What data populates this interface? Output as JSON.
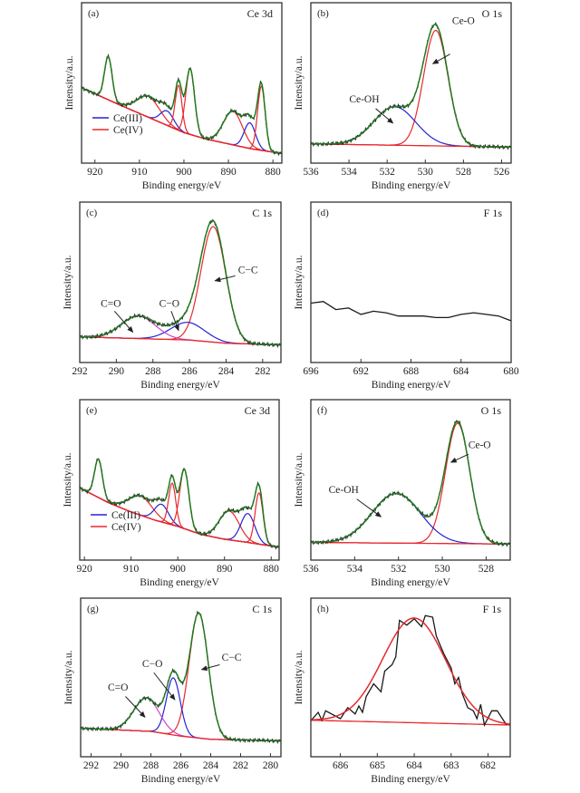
{
  "colors": {
    "envelope": "#1e7d1e",
    "raw": "#1a1a1a",
    "ce_iv": "#e8282c",
    "ce_iii": "#2323d2",
    "c_c": "#e8282c",
    "c_o": "#2323d2",
    "c_eq_o": "#cc44cc",
    "background": "#e8282c",
    "ce_o": "#e8282c",
    "ce_oh": "#2323d2",
    "f": "#e8282c"
  },
  "chart_data": [
    {
      "type": "line",
      "panel_label": "(a)",
      "element": "Ce 3d",
      "xlabel": "Binding energy/eV",
      "ylabel": "Intensity/a.u.",
      "xlim": [
        923,
        878
      ],
      "ylim": [
        0,
        1
      ],
      "x_reversed": true,
      "xticks": [
        920,
        910,
        900,
        890,
        880
      ],
      "yticks": [],
      "grid": false,
      "legend": {
        "placement": "lower-left",
        "entries": [
          {
            "label": "Ce(III)",
            "color": "#2323d2"
          },
          {
            "label": "Ce(IV)",
            "color": "#e8282c"
          }
        ]
      },
      "background": [
        [
          923,
          0.47
        ],
        [
          915,
          0.37
        ],
        [
          910,
          0.31
        ],
        [
          905,
          0.25
        ],
        [
          900,
          0.19
        ],
        [
          895,
          0.15
        ],
        [
          890,
          0.12
        ],
        [
          885,
          0.09
        ],
        [
          878,
          0.06
        ]
      ],
      "components": [
        {
          "species": "Ce(IV)",
          "center": 917.0,
          "fwhm": 2.0,
          "height": 0.27
        },
        {
          "species": "Ce(IV)",
          "center": 908.0,
          "fwhm": 6.0,
          "height": 0.13
        },
        {
          "species": "Ce(III)",
          "center": 903.8,
          "fwhm": 3.5,
          "height": 0.09
        },
        {
          "species": "Ce(IV)",
          "center": 901.2,
          "fwhm": 1.8,
          "height": 0.28
        },
        {
          "species": "Ce(IV)",
          "center": 898.6,
          "fwhm": 2.3,
          "height": 0.41
        },
        {
          "species": "Ce(IV)",
          "center": 889.0,
          "fwhm": 5.0,
          "height": 0.21
        },
        {
          "species": "Ce(III)",
          "center": 885.2,
          "fwhm": 3.0,
          "height": 0.16
        },
        {
          "species": "Ce(IV)",
          "center": 882.6,
          "fwhm": 2.0,
          "height": 0.4
        }
      ],
      "annotations": []
    },
    {
      "type": "line",
      "panel_label": "(b)",
      "element": "O 1s",
      "xlabel": "Binding energy/eV",
      "ylabel": "Intensity/a.u.",
      "xlim": [
        536,
        525.5
      ],
      "ylim": [
        0,
        1
      ],
      "x_reversed": true,
      "xticks": [
        536,
        534,
        532,
        530,
        528,
        526
      ],
      "yticks": [],
      "grid": false,
      "background": [
        [
          536,
          0.12
        ],
        [
          525.5,
          0.1
        ]
      ],
      "components": [
        {
          "species": "Ce-O",
          "center": 529.45,
          "fwhm": 1.5,
          "height": 0.72
        },
        {
          "species": "Ce-OH",
          "center": 531.6,
          "fwhm": 2.6,
          "height": 0.24
        }
      ],
      "annotations": [
        {
          "text": "Ce-O",
          "x": 528.0,
          "y": 0.89,
          "arrow_from": [
            528.7,
            0.68
          ],
          "arrow_to": [
            529.6,
            0.62
          ]
        },
        {
          "text": "Ce-OH",
          "x": 533.2,
          "y": 0.4,
          "arrow_from": [
            532.6,
            0.34
          ],
          "arrow_to": [
            531.7,
            0.25
          ]
        }
      ]
    },
    {
      "type": "line",
      "panel_label": "(c)",
      "element": "C 1s",
      "xlabel": "Binding energy/eV",
      "ylabel": "Intensity/a.u.",
      "xlim": [
        292,
        281
      ],
      "ylim": [
        0,
        1
      ],
      "x_reversed": true,
      "xticks": [
        292,
        290,
        288,
        286,
        284,
        282
      ],
      "yticks": [],
      "grid": false,
      "background": [
        [
          292,
          0.16
        ],
        [
          286,
          0.14
        ],
        [
          284,
          0.12
        ],
        [
          281,
          0.11
        ]
      ],
      "components": [
        {
          "species": "C-C",
          "center": 284.7,
          "fwhm": 1.6,
          "height": 0.72
        },
        {
          "species": "C-O",
          "center": 286.1,
          "fwhm": 2.2,
          "height": 0.11
        },
        {
          "species": "C=O",
          "center": 288.8,
          "fwhm": 2.2,
          "height": 0.14
        }
      ],
      "annotations": [
        {
          "text": "C−C",
          "x": 282.8,
          "y": 0.58,
          "arrow_from": [
            283.5,
            0.54
          ],
          "arrow_to": [
            284.6,
            0.51
          ]
        },
        {
          "text": "C=O",
          "x": 290.3,
          "y": 0.37,
          "arrow_from": [
            290.1,
            0.32
          ],
          "arrow_to": [
            289.1,
            0.19
          ]
        },
        {
          "text": "C−O",
          "x": 287.1,
          "y": 0.37,
          "arrow_from": [
            287.0,
            0.32
          ],
          "arrow_to": [
            286.6,
            0.2
          ]
        }
      ]
    },
    {
      "type": "line",
      "panel_label": "(d)",
      "element": "F 1s",
      "xlabel": "Binding energy/eV",
      "ylabel": "Intensity/a.u.",
      "xlim": [
        696,
        680
      ],
      "ylim": [
        0,
        1
      ],
      "x_reversed": true,
      "xticks": [
        696,
        692,
        688,
        684,
        680
      ],
      "yticks": [],
      "grid": false,
      "raw": [
        [
          696,
          0.37
        ],
        [
          695,
          0.38
        ],
        [
          694,
          0.33
        ],
        [
          693,
          0.34
        ],
        [
          692,
          0.3
        ],
        [
          691,
          0.32
        ],
        [
          690,
          0.31
        ],
        [
          689,
          0.29
        ],
        [
          688,
          0.29
        ],
        [
          687,
          0.29
        ],
        [
          686,
          0.28
        ],
        [
          685,
          0.28
        ],
        [
          684,
          0.3
        ],
        [
          683,
          0.31
        ],
        [
          682,
          0.3
        ],
        [
          681,
          0.29
        ],
        [
          680,
          0.26
        ]
      ],
      "components": [],
      "annotations": []
    },
    {
      "type": "line",
      "panel_label": "(e)",
      "element": "Ce 3d",
      "xlabel": "Binding energy/eV",
      "ylabel": "Intensity/a.u.",
      "xlim": [
        921,
        878.3
      ],
      "ylim": [
        0,
        1
      ],
      "x_reversed": true,
      "xticks": [
        920,
        910,
        900,
        890,
        880
      ],
      "yticks": [],
      "grid": false,
      "legend": {
        "placement": "lower-left",
        "entries": [
          {
            "label": "Ce(III)",
            "color": "#2323d2"
          },
          {
            "label": "Ce(IV)",
            "color": "#e8282c"
          }
        ]
      },
      "background": [
        [
          921,
          0.45
        ],
        [
          915,
          0.36
        ],
        [
          910,
          0.3
        ],
        [
          905,
          0.25
        ],
        [
          900,
          0.21
        ],
        [
          895,
          0.16
        ],
        [
          890,
          0.13
        ],
        [
          885,
          0.11
        ],
        [
          878.3,
          0.08
        ]
      ],
      "components": [
        {
          "species": "Ce(IV)",
          "center": 917.0,
          "fwhm": 2.0,
          "height": 0.24
        },
        {
          "species": "Ce(IV)",
          "center": 908.0,
          "fwhm": 6.0,
          "height": 0.12
        },
        {
          "species": "Ce(III)",
          "center": 903.5,
          "fwhm": 3.5,
          "height": 0.11
        },
        {
          "species": "Ce(IV)",
          "center": 901.2,
          "fwhm": 1.8,
          "height": 0.26
        },
        {
          "species": "Ce(IV)",
          "center": 898.6,
          "fwhm": 2.3,
          "height": 0.37
        },
        {
          "species": "Ce(IV)",
          "center": 889.0,
          "fwhm": 5.0,
          "height": 0.18
        },
        {
          "species": "Ce(III)",
          "center": 885.0,
          "fwhm": 3.5,
          "height": 0.18
        },
        {
          "species": "Ce(IV)",
          "center": 882.6,
          "fwhm": 2.0,
          "height": 0.32
        }
      ],
      "annotations": []
    },
    {
      "type": "line",
      "panel_label": "(f)",
      "element": "O 1s",
      "xlabel": "Binding energy/eV",
      "ylabel": "Intensity/a.u.",
      "xlim": [
        536,
        526.9
      ],
      "ylim": [
        0,
        1
      ],
      "x_reversed": true,
      "xticks": [
        536,
        534,
        532,
        530,
        528
      ],
      "yticks": [],
      "grid": false,
      "background": [
        [
          536,
          0.11
        ],
        [
          526.9,
          0.1
        ]
      ],
      "components": [
        {
          "species": "Ce-O",
          "center": 529.3,
          "fwhm": 1.3,
          "height": 0.75
        },
        {
          "species": "Ce-OH",
          "center": 532.1,
          "fwhm": 2.6,
          "height": 0.31
        }
      ],
      "annotations": [
        {
          "text": "Ce-O",
          "x": 528.3,
          "y": 0.72,
          "arrow_from": [
            528.8,
            0.66
          ],
          "arrow_to": [
            529.6,
            0.61
          ]
        },
        {
          "text": "Ce-OH",
          "x": 534.5,
          "y": 0.44,
          "arrow_from": [
            533.9,
            0.38
          ],
          "arrow_to": [
            532.8,
            0.27
          ]
        }
      ]
    },
    {
      "type": "line",
      "panel_label": "(g)",
      "element": "C 1s",
      "xlabel": "Binding energy/eV",
      "ylabel": "Intensity/a.u.",
      "xlim": [
        292.7,
        279.3
      ],
      "ylim": [
        0,
        1
      ],
      "x_reversed": true,
      "xticks": [
        292,
        290,
        288,
        286,
        284,
        282,
        280
      ],
      "yticks": [],
      "grid": false,
      "background": [
        [
          292.7,
          0.18
        ],
        [
          288,
          0.16
        ],
        [
          286,
          0.13
        ],
        [
          284,
          0.11
        ],
        [
          279.3,
          0.1
        ]
      ],
      "components": [
        {
          "species": "C-C",
          "center": 284.8,
          "fwhm": 1.5,
          "height": 0.79
        },
        {
          "species": "C-O",
          "center": 286.5,
          "fwhm": 1.1,
          "height": 0.36
        },
        {
          "species": "C=O",
          "center": 288.3,
          "fwhm": 2.0,
          "height": 0.21
        }
      ],
      "annotations": [
        {
          "text": "C−C",
          "x": 282.6,
          "y": 0.63,
          "arrow_from": [
            283.4,
            0.58
          ],
          "arrow_to": [
            284.6,
            0.55
          ]
        },
        {
          "text": "C−O",
          "x": 287.9,
          "y": 0.59,
          "arrow_from": [
            287.8,
            0.53
          ],
          "arrow_to": [
            286.4,
            0.36
          ]
        },
        {
          "text": "C=O",
          "x": 290.2,
          "y": 0.44,
          "arrow_from": [
            289.7,
            0.38
          ],
          "arrow_to": [
            288.4,
            0.25
          ]
        }
      ]
    },
    {
      "type": "line",
      "panel_label": "(h)",
      "element": "F 1s",
      "xlabel": "Binding energy/eV",
      "ylabel": "Intensity/a.u.",
      "xlim": [
        686.8,
        681.4
      ],
      "ylim": [
        0,
        1
      ],
      "x_reversed": true,
      "xticks": [
        686,
        685,
        684,
        683,
        682
      ],
      "yticks": [],
      "grid": false,
      "background": [
        [
          686.8,
          0.23
        ],
        [
          681.4,
          0.2
        ]
      ],
      "components": [
        {
          "species": "F",
          "center": 684.0,
          "fwhm": 2.0,
          "height": 0.66
        }
      ],
      "raw": [
        [
          686.79,
          0.23
        ],
        [
          686.6,
          0.28
        ],
        [
          686.5,
          0.23
        ],
        [
          686.4,
          0.29
        ],
        [
          686.0,
          0.24
        ],
        [
          685.8,
          0.31
        ],
        [
          685.6,
          0.27
        ],
        [
          685.5,
          0.32
        ],
        [
          685.4,
          0.28
        ],
        [
          685.3,
          0.38
        ],
        [
          685.1,
          0.46
        ],
        [
          684.9,
          0.41
        ],
        [
          684.8,
          0.54
        ],
        [
          684.6,
          0.58
        ],
        [
          684.5,
          0.63
        ],
        [
          684.4,
          0.86
        ],
        [
          684.2,
          0.83
        ],
        [
          684.0,
          0.87
        ],
        [
          683.8,
          0.82
        ],
        [
          683.7,
          0.89
        ],
        [
          683.5,
          0.88
        ],
        [
          683.4,
          0.76
        ],
        [
          683.2,
          0.65
        ],
        [
          683.0,
          0.56
        ],
        [
          682.9,
          0.46
        ],
        [
          682.8,
          0.5
        ],
        [
          682.7,
          0.4
        ],
        [
          682.55,
          0.31
        ],
        [
          682.4,
          0.29
        ],
        [
          682.3,
          0.24
        ],
        [
          682.2,
          0.33
        ],
        [
          682.1,
          0.2
        ],
        [
          681.9,
          0.29
        ],
        [
          681.75,
          0.29
        ],
        [
          681.5,
          0.2
        ]
      ],
      "annotations": []
    }
  ]
}
